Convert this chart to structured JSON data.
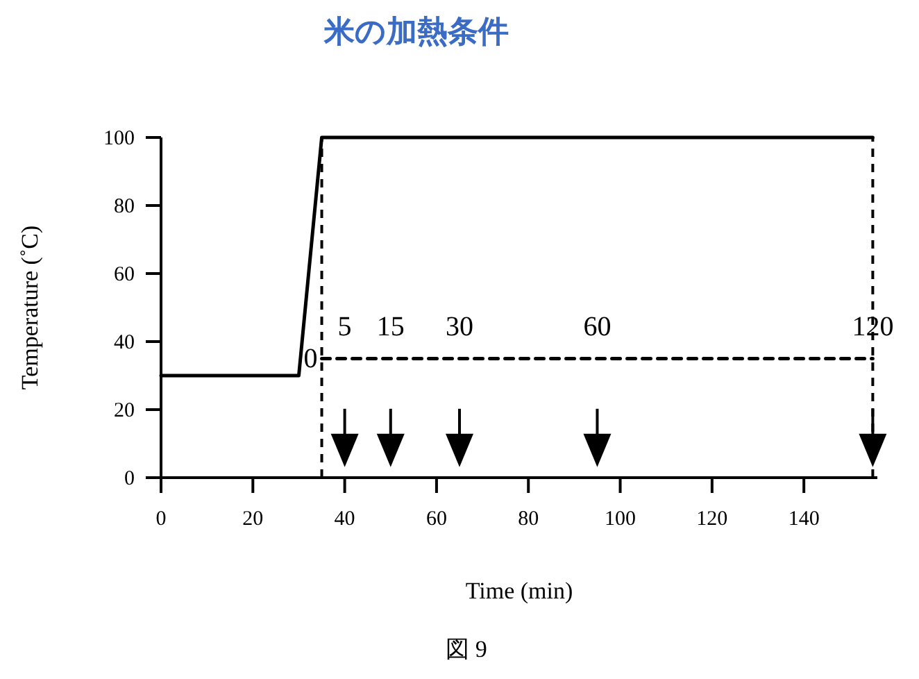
{
  "chart_data": {
    "type": "line",
    "title": "米の加熱条件",
    "xlabel": "Time (min)",
    "ylabel": "Temperature (˚C)",
    "xlim": [
      0,
      156
    ],
    "ylim": [
      0,
      100
    ],
    "xticks": [
      0,
      20,
      40,
      60,
      80,
      100,
      120,
      140
    ],
    "yticks": [
      0,
      20,
      40,
      60,
      80,
      100
    ],
    "grid": false,
    "series": [
      {
        "color": "#000000",
        "line_style": "solid",
        "x": [
          0,
          30,
          35,
          155
        ],
        "values": [
          30,
          30,
          100,
          100
        ]
      },
      {
        "color": "#000000",
        "line_style": "dashed",
        "x": [
          35,
          155
        ],
        "values": [
          35,
          35
        ]
      },
      {
        "type": "scatter",
        "color": "#000000",
        "marker": "triangle",
        "x": [
          40,
          50,
          65,
          95,
          155
        ],
        "values": [
          8,
          8,
          8,
          8,
          8
        ]
      }
    ],
    "ref_lines": [
      {
        "axis": "x",
        "value": 35,
        "line_style": "dashed",
        "color": "#000000"
      },
      {
        "axis": "x",
        "value": 155,
        "line_style": "dashed",
        "color": "#000000"
      }
    ],
    "annotations": [
      {
        "text": "0",
        "x": 35,
        "y": 35
      },
      {
        "text": "5",
        "x": 40,
        "y": 35
      },
      {
        "text": "15",
        "x": 50,
        "y": 35
      },
      {
        "text": "30",
        "x": 65,
        "y": 35
      },
      {
        "text": "60",
        "x": 95,
        "y": 35
      },
      {
        "text": "120",
        "x": 155,
        "y": 35
      },
      "図 9"
    ]
  }
}
